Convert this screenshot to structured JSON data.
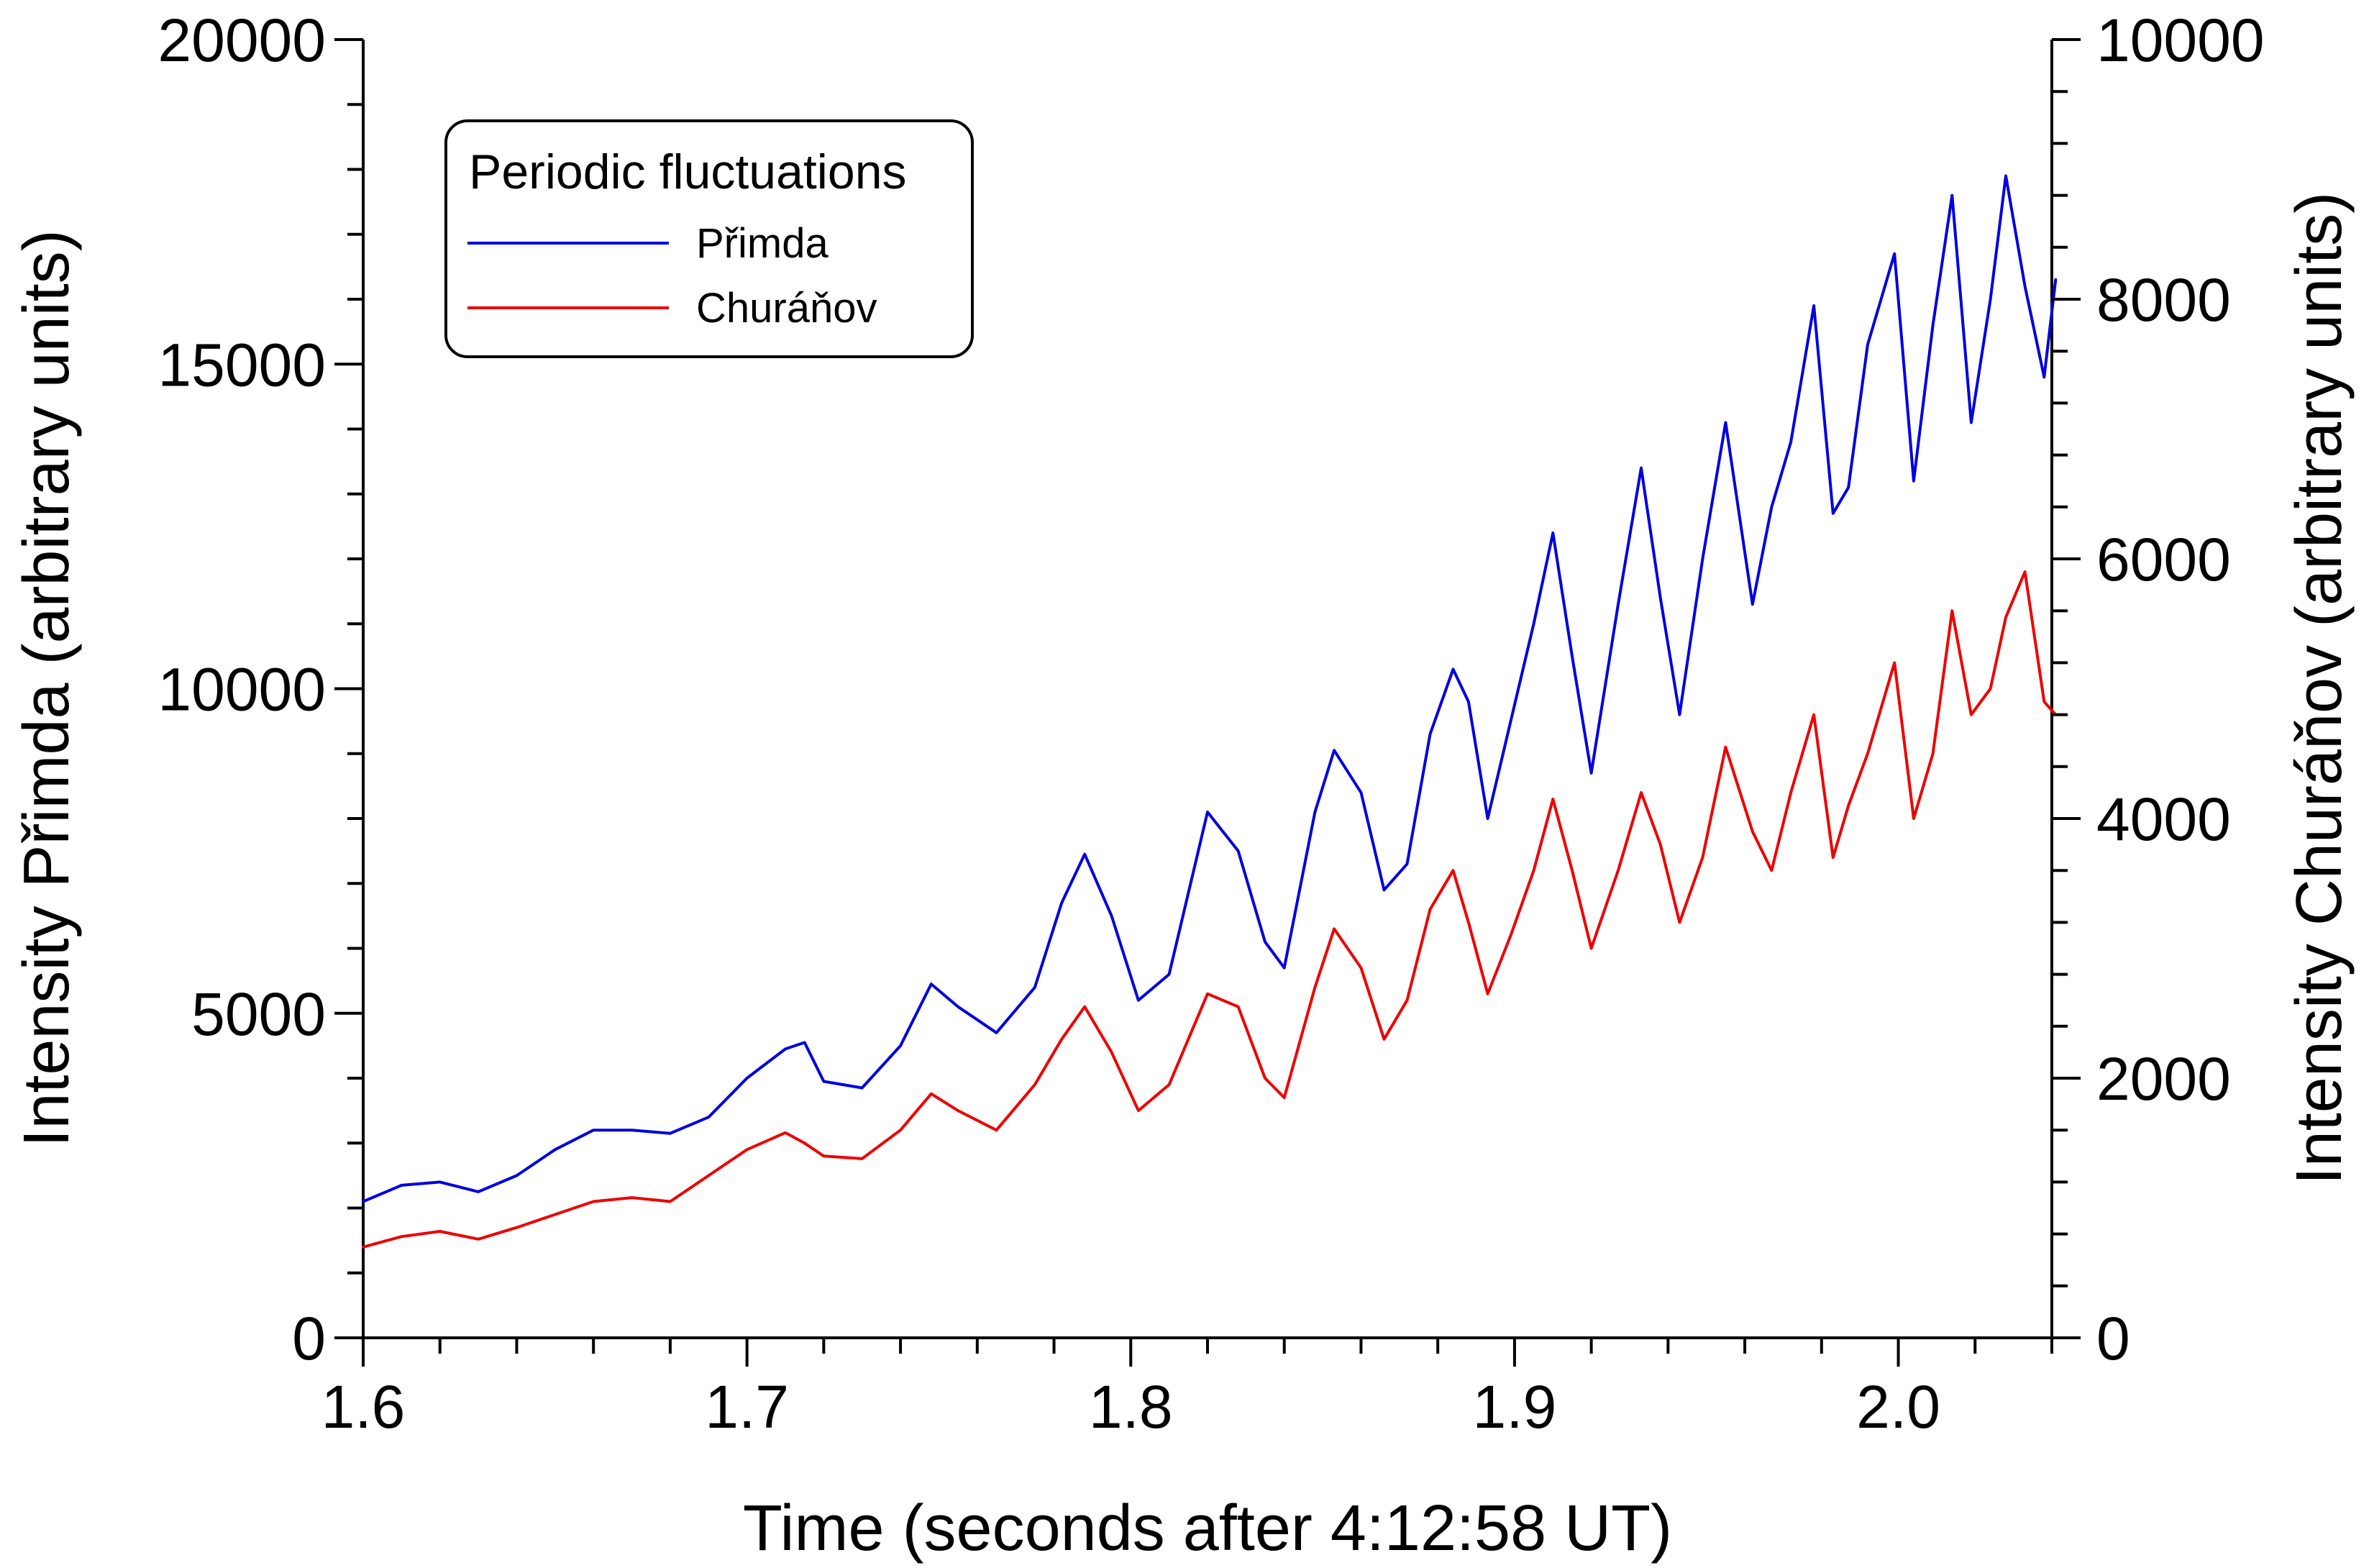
{
  "chart_data": {
    "type": "line",
    "title": "",
    "xlabel": "Time (seconds after 4:12:58 UT)",
    "ylabel_left": "Intensity Přimda (arbitrary units)",
    "ylabel_right": "Intensity Churáňov (arbitrary units)",
    "xlim": [
      1.6,
      2.04
    ],
    "ylim_left": [
      0,
      20000
    ],
    "ylim_right": [
      0,
      10000
    ],
    "x_ticks": [
      1.6,
      1.7,
      1.8,
      1.9,
      2.0
    ],
    "x_tick_labels": [
      "1.6",
      "1.7",
      "1.8",
      "1.9",
      "2.0"
    ],
    "y_left_ticks": [
      0,
      5000,
      10000,
      15000,
      20000
    ],
    "y_left_tick_labels": [
      "0",
      "5000",
      "10000",
      "15000",
      "20000"
    ],
    "y_right_ticks": [
      0,
      2000,
      4000,
      6000,
      8000,
      10000
    ],
    "y_right_tick_labels": [
      "0",
      "2000",
      "4000",
      "6000",
      "8000",
      "10000"
    ],
    "grid": false,
    "legend": {
      "title": "Periodic fluctuations",
      "position": "top-left"
    },
    "series": [
      {
        "name": "Přimda",
        "axis": "left",
        "color": "#0000e0",
        "x": [
          1.6,
          1.61,
          1.62,
          1.63,
          1.64,
          1.65,
          1.66,
          1.67,
          1.68,
          1.69,
          1.7,
          1.71,
          1.715,
          1.72,
          1.73,
          1.74,
          1.748,
          1.755,
          1.765,
          1.775,
          1.782,
          1.788,
          1.795,
          1.802,
          1.81,
          1.82,
          1.828,
          1.835,
          1.84,
          1.848,
          1.853,
          1.86,
          1.866,
          1.872,
          1.878,
          1.884,
          1.888,
          1.893,
          1.899,
          1.905,
          1.91,
          1.915,
          1.92,
          1.927,
          1.933,
          1.938,
          1.943,
          1.949,
          1.955,
          1.962,
          1.967,
          1.972,
          1.978,
          1.983,
          1.987,
          1.992,
          1.999,
          2.004,
          2.009,
          2.014,
          2.019,
          2.024,
          2.028,
          2.033,
          2.038,
          2.041
        ],
        "values": [
          2100,
          2350,
          2400,
          2250,
          2500,
          2900,
          3200,
          3200,
          3150,
          3400,
          4000,
          4450,
          4550,
          3950,
          3850,
          4500,
          5450,
          5100,
          4700,
          5400,
          6700,
          7450,
          6500,
          5200,
          5600,
          8100,
          7500,
          6100,
          5700,
          8100,
          9050,
          8400,
          6900,
          7300,
          9300,
          10300,
          9800,
          8000,
          9500,
          11000,
          12400,
          10500,
          8700,
          11300,
          13400,
          11400,
          9600,
          12000,
          14100,
          11300,
          12800,
          13800,
          15900,
          12700,
          13100,
          15300,
          16700,
          13200,
          15600,
          17600,
          14100,
          16000,
          17900,
          16200,
          14800,
          16300
        ]
      },
      {
        "name": "Churáňov",
        "axis": "right",
        "color": "#ee0000",
        "x": [
          1.6,
          1.61,
          1.62,
          1.63,
          1.64,
          1.65,
          1.66,
          1.67,
          1.68,
          1.69,
          1.7,
          1.71,
          1.715,
          1.72,
          1.73,
          1.74,
          1.748,
          1.755,
          1.765,
          1.775,
          1.782,
          1.788,
          1.795,
          1.802,
          1.81,
          1.82,
          1.828,
          1.835,
          1.84,
          1.848,
          1.853,
          1.86,
          1.866,
          1.872,
          1.878,
          1.884,
          1.888,
          1.893,
          1.899,
          1.905,
          1.91,
          1.915,
          1.92,
          1.927,
          1.933,
          1.938,
          1.943,
          1.949,
          1.955,
          1.962,
          1.967,
          1.972,
          1.978,
          1.983,
          1.987,
          1.992,
          1.999,
          2.004,
          2.009,
          2.014,
          2.019,
          2.024,
          2.028,
          2.033,
          2.038,
          2.041
        ],
        "values": [
          700,
          780,
          820,
          760,
          850,
          950,
          1050,
          1080,
          1050,
          1250,
          1450,
          1580,
          1500,
          1400,
          1380,
          1600,
          1880,
          1750,
          1600,
          1950,
          2300,
          2550,
          2200,
          1750,
          1950,
          2650,
          2550,
          2000,
          1850,
          2700,
          3150,
          2850,
          2300,
          2600,
          3300,
          3600,
          3200,
          2650,
          3100,
          3600,
          4150,
          3600,
          3000,
          3600,
          4200,
          3800,
          3200,
          3700,
          4550,
          3900,
          3600,
          4200,
          4800,
          3700,
          4100,
          4500,
          5200,
          4000,
          4500,
          5600,
          4800,
          5000,
          5550,
          5900,
          4900,
          4800
        ]
      }
    ]
  }
}
